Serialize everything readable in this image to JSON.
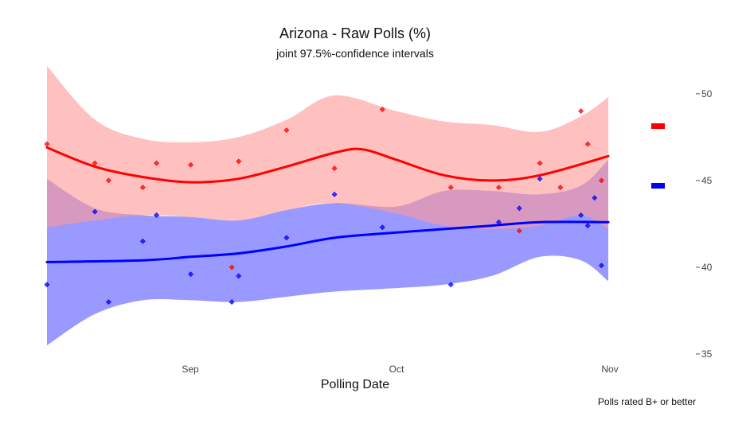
{
  "chart_data": {
    "type": "scatter",
    "title": "Arizona - Raw Polls (%)",
    "subtitle": "joint 97.5%-confidence intervals",
    "xlabel": "Polling Date",
    "ylabel": "",
    "caption": "Polls rated B+ or better",
    "x_ticks": [
      "Sep",
      "Oct",
      "Nov"
    ],
    "y_ticks": [
      35,
      40,
      45,
      50
    ],
    "xlim": [
      "2020-08-11",
      "2020-11-01"
    ],
    "ylim": [
      35,
      51
    ],
    "grid": false,
    "legend_position": "right",
    "series": [
      {
        "color": "#ff0000",
        "band_color": "#ff9999",
        "points": [
          [
            "2020-08-11",
            47.1
          ],
          [
            "2020-08-18",
            46.0
          ],
          [
            "2020-08-20",
            45.0
          ],
          [
            "2020-08-25",
            44.6
          ],
          [
            "2020-08-27",
            46.0
          ],
          [
            "2020-09-01",
            45.9
          ],
          [
            "2020-09-07",
            40.0
          ],
          [
            "2020-09-08",
            46.1
          ],
          [
            "2020-09-15",
            47.9
          ],
          [
            "2020-09-22",
            45.7
          ],
          [
            "2020-09-29",
            49.1
          ],
          [
            "2020-10-09",
            44.6
          ],
          [
            "2020-10-16",
            44.6
          ],
          [
            "2020-10-19",
            42.1
          ],
          [
            "2020-10-22",
            46.0
          ],
          [
            "2020-10-25",
            44.6
          ],
          [
            "2020-10-28",
            49.0
          ],
          [
            "2020-10-29",
            47.1
          ],
          [
            "2020-10-31",
            45.0
          ]
        ],
        "trend": [
          [
            "2020-08-11",
            46.9
          ],
          [
            "2020-08-18",
            45.8
          ],
          [
            "2020-08-25",
            45.2
          ],
          [
            "2020-09-01",
            44.9
          ],
          [
            "2020-09-08",
            45.1
          ],
          [
            "2020-09-15",
            45.8
          ],
          [
            "2020-09-22",
            46.6
          ],
          [
            "2020-09-26",
            46.8
          ],
          [
            "2020-10-01",
            46.2
          ],
          [
            "2020-10-08",
            45.3
          ],
          [
            "2020-10-15",
            45.0
          ],
          [
            "2020-10-22",
            45.3
          ],
          [
            "2020-11-01",
            46.4
          ]
        ],
        "band_upper": [
          [
            "2020-08-11",
            51.6
          ],
          [
            "2020-08-18",
            48.5
          ],
          [
            "2020-08-25",
            47.4
          ],
          [
            "2020-09-01",
            47.2
          ],
          [
            "2020-09-08",
            47.5
          ],
          [
            "2020-09-15",
            48.5
          ],
          [
            "2020-09-22",
            49.9
          ],
          [
            "2020-10-01",
            49.0
          ],
          [
            "2020-10-08",
            48.4
          ],
          [
            "2020-10-15",
            48.2
          ],
          [
            "2020-10-22",
            47.8
          ],
          [
            "2020-10-28",
            48.7
          ],
          [
            "2020-11-01",
            49.8
          ]
        ],
        "band_lower": [
          [
            "2020-08-11",
            42.3
          ],
          [
            "2020-08-18",
            42.7
          ],
          [
            "2020-08-25",
            43.0
          ],
          [
            "2020-09-01",
            42.9
          ],
          [
            "2020-09-08",
            42.7
          ],
          [
            "2020-09-15",
            43.3
          ],
          [
            "2020-09-22",
            43.7
          ],
          [
            "2020-10-01",
            43.1
          ],
          [
            "2020-10-08",
            42.4
          ],
          [
            "2020-10-15",
            42.2
          ],
          [
            "2020-10-22",
            42.4
          ],
          [
            "2020-10-28",
            43.0
          ],
          [
            "2020-11-01",
            42.2
          ]
        ]
      },
      {
        "color": "#0000ff",
        "band_color": "#9999ff",
        "points": [
          [
            "2020-08-11",
            39.0
          ],
          [
            "2020-08-18",
            43.2
          ],
          [
            "2020-08-20",
            38.0
          ],
          [
            "2020-08-25",
            41.5
          ],
          [
            "2020-08-27",
            43.0
          ],
          [
            "2020-09-01",
            39.6
          ],
          [
            "2020-09-07",
            38.0
          ],
          [
            "2020-09-08",
            39.5
          ],
          [
            "2020-09-15",
            41.7
          ],
          [
            "2020-09-22",
            44.2
          ],
          [
            "2020-09-29",
            42.3
          ],
          [
            "2020-10-09",
            39.0
          ],
          [
            "2020-10-16",
            42.6
          ],
          [
            "2020-10-19",
            43.4
          ],
          [
            "2020-10-22",
            45.1
          ],
          [
            "2020-10-28",
            43.0
          ],
          [
            "2020-10-29",
            42.4
          ],
          [
            "2020-10-30",
            44.0
          ],
          [
            "2020-10-31",
            40.1
          ]
        ],
        "trend": [
          [
            "2020-08-11",
            40.3
          ],
          [
            "2020-08-25",
            40.4
          ],
          [
            "2020-09-01",
            40.6
          ],
          [
            "2020-09-08",
            40.8
          ],
          [
            "2020-09-15",
            41.2
          ],
          [
            "2020-09-22",
            41.7
          ],
          [
            "2020-10-01",
            42.0
          ],
          [
            "2020-10-08",
            42.2
          ],
          [
            "2020-10-15",
            42.4
          ],
          [
            "2020-10-22",
            42.6
          ],
          [
            "2020-11-01",
            42.6
          ]
        ],
        "band_upper": [
          [
            "2020-08-11",
            45.1
          ],
          [
            "2020-08-18",
            43.4
          ],
          [
            "2020-08-25",
            43.0
          ],
          [
            "2020-09-01",
            42.9
          ],
          [
            "2020-09-08",
            42.7
          ],
          [
            "2020-09-15",
            43.3
          ],
          [
            "2020-09-22",
            43.7
          ],
          [
            "2020-10-01",
            43.5
          ],
          [
            "2020-10-08",
            44.4
          ],
          [
            "2020-10-15",
            44.4
          ],
          [
            "2020-10-22",
            44.2
          ],
          [
            "2020-10-28",
            44.7
          ],
          [
            "2020-11-01",
            46.2
          ]
        ],
        "band_lower": [
          [
            "2020-08-11",
            35.5
          ],
          [
            "2020-08-18",
            37.3
          ],
          [
            "2020-08-25",
            38.1
          ],
          [
            "2020-09-01",
            38.1
          ],
          [
            "2020-09-08",
            38.0
          ],
          [
            "2020-09-15",
            38.3
          ],
          [
            "2020-09-22",
            38.6
          ],
          [
            "2020-10-01",
            38.8
          ],
          [
            "2020-10-08",
            39.0
          ],
          [
            "2020-10-15",
            39.5
          ],
          [
            "2020-10-22",
            40.6
          ],
          [
            "2020-10-28",
            40.4
          ],
          [
            "2020-11-01",
            39.2
          ]
        ]
      }
    ]
  }
}
